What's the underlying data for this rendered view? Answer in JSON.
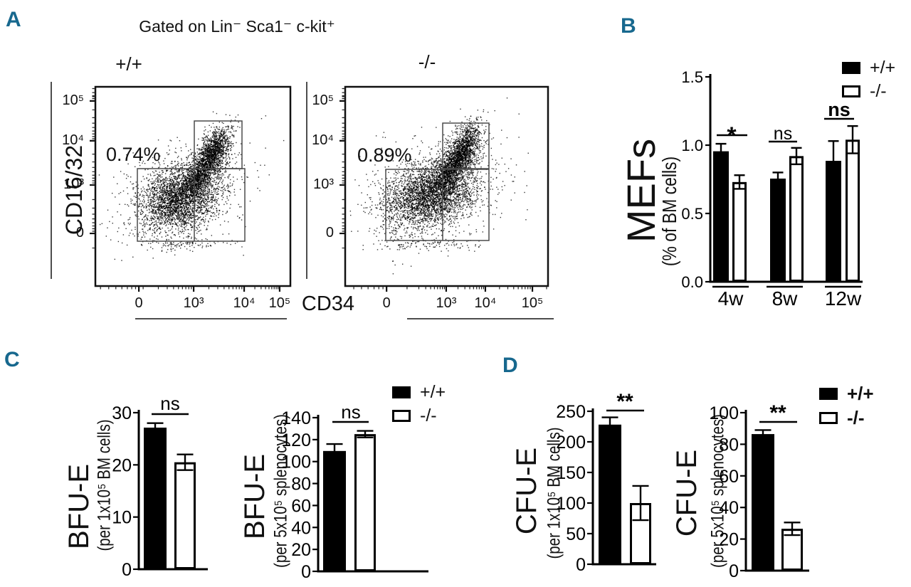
{
  "figure": {
    "background": "#ffffff",
    "panel_label_color": "#17688e",
    "ink": "#000000",
    "bar_fill_wildtype": "#000000",
    "bar_fill_knockout": "#ffffff"
  },
  "panels": {
    "a": {
      "label": "A",
      "title": "Gated on Lin⁻ Sca1⁻ c-kit⁺",
      "x_axis_label": "CD34",
      "y_axis_label": "CD16/32",
      "plots": [
        {
          "genotype": "+/+",
          "percent": "0.74%"
        },
        {
          "genotype": "-/-",
          "percent": "0.89%"
        }
      ]
    },
    "b": {
      "label": "B",
      "y_label": "MEFs",
      "y_label_sub": "(% of BM cells)",
      "legend": [
        {
          "label": "+/+"
        },
        {
          "label": "-/-"
        }
      ]
    },
    "c": {
      "label": "C",
      "legend": [
        {
          "label": "+/+"
        },
        {
          "label": "-/-"
        }
      ],
      "charts": [
        {
          "y_label": "BFU-E",
          "y_label_sub": "(per 1x10⁵ BM cells)"
        },
        {
          "y_label": "BFU-E",
          "y_label_sub": "(per 5x10⁵ splenocytes)"
        }
      ]
    },
    "d": {
      "label": "D",
      "legend": [
        {
          "label": "+/+"
        },
        {
          "label": "-/-"
        }
      ],
      "charts": [
        {
          "y_label": "CFU-E",
          "y_label_sub": "(per 1x10⁵ BM cells)"
        },
        {
          "y_label": "CFU-E",
          "y_label_sub": "(per 5x10⁵ splenocytes)"
        }
      ]
    }
  },
  "chart_data": [
    {
      "id": "flow-wildtype",
      "type": "scatter",
      "subtype": "flow-cytometry-dot-plot",
      "title": "+/+",
      "gated_on": "Gated on Lin⁻ Sca1⁻ c-kit⁺",
      "gate_percent": "0.74%",
      "x_label": "CD34",
      "y_label": "CD16/32",
      "x_ticks": [
        "0",
        "10³",
        "10⁴",
        "10⁵"
      ],
      "y_ticks": [
        "10⁵",
        "10⁴",
        "10³",
        "0"
      ]
    },
    {
      "id": "flow-knockout",
      "type": "scatter",
      "subtype": "flow-cytometry-dot-plot",
      "title": "-/-",
      "gated_on": "Gated on Lin⁻ Sca1⁻ c-kit⁺",
      "gate_percent": "0.89%",
      "x_label": "CD34",
      "y_label": "CD16/32",
      "x_ticks": [
        "0",
        "10³",
        "10⁴",
        "10⁵"
      ],
      "y_ticks": [
        "10⁵",
        "10⁴",
        "10³",
        "0"
      ]
    },
    {
      "id": "mefs",
      "type": "bar",
      "title": "MEFs (% of BM cells)",
      "categories": [
        "4w",
        "8w",
        "12w"
      ],
      "series": [
        {
          "name": "+/+",
          "fill": "#000000",
          "values": [
            0.95,
            0.75,
            0.88
          ],
          "errors": [
            0.06,
            0.05,
            0.15
          ]
        },
        {
          "name": "-/-",
          "fill": "#ffffff",
          "values": [
            0.73,
            0.92,
            1.04
          ],
          "errors": [
            0.05,
            0.06,
            0.1
          ]
        }
      ],
      "ylim": [
        0,
        1.5
      ],
      "yticks": [
        "0.0",
        "0.5",
        "1.0",
        "1.5"
      ],
      "significance": [
        {
          "category": "4w",
          "label": "*",
          "bold": true
        },
        {
          "category": "8w",
          "label": "ns",
          "bold": false
        },
        {
          "category": "12w",
          "label": "ns",
          "bold": true
        }
      ]
    },
    {
      "id": "bfue-bm",
      "type": "bar",
      "title": "BFU-E (per 1x10⁵ BM cells)",
      "categories": [
        ""
      ],
      "series": [
        {
          "name": "+/+",
          "fill": "#000000",
          "values": [
            27
          ],
          "errors": [
            1
          ]
        },
        {
          "name": "-/-",
          "fill": "#ffffff",
          "values": [
            20.5
          ],
          "errors": [
            1.5
          ]
        }
      ],
      "ylim": [
        0,
        30
      ],
      "yticks": [
        "0",
        "10",
        "20",
        "30"
      ],
      "significance": [
        {
          "label": "ns",
          "bold": false
        }
      ]
    },
    {
      "id": "bfue-spleen",
      "type": "bar",
      "title": "BFU-E (per 5x10⁵ splenocytes)",
      "categories": [
        ""
      ],
      "series": [
        {
          "name": "+/+",
          "fill": "#000000",
          "values": [
            109
          ],
          "errors": [
            7
          ]
        },
        {
          "name": "-/-",
          "fill": "#ffffff",
          "values": [
            125
          ],
          "errors": [
            3
          ]
        }
      ],
      "ylim": [
        0,
        140
      ],
      "yticks": [
        "0",
        "20",
        "40",
        "60",
        "80",
        "100",
        "120",
        "140"
      ],
      "significance": [
        {
          "label": "ns",
          "bold": false
        }
      ]
    },
    {
      "id": "cfue-bm",
      "type": "bar",
      "title": "CFU-E (per 1x10⁵ BM cells)",
      "categories": [
        ""
      ],
      "series": [
        {
          "name": "+/+",
          "fill": "#000000",
          "values": [
            227
          ],
          "errors": [
            13
          ]
        },
        {
          "name": "-/-",
          "fill": "#ffffff",
          "values": [
            100
          ],
          "errors": [
            28
          ]
        }
      ],
      "ylim": [
        0,
        250
      ],
      "yticks": [
        "0",
        "50",
        "100",
        "150",
        "200",
        "250"
      ],
      "significance": [
        {
          "label": "**",
          "bold": true
        }
      ]
    },
    {
      "id": "cfue-spleen",
      "type": "bar",
      "title": "CFU-E (per 5x10⁵ splenocytes)",
      "categories": [
        ""
      ],
      "series": [
        {
          "name": "+/+",
          "fill": "#000000",
          "values": [
            86
          ],
          "errors": [
            3
          ]
        },
        {
          "name": "-/-",
          "fill": "#ffffff",
          "values": [
            26.5
          ],
          "errors": [
            4
          ]
        }
      ],
      "ylim": [
        0,
        100
      ],
      "yticks": [
        "0",
        "20",
        "40",
        "60",
        "80",
        "100"
      ],
      "significance": [
        {
          "label": "**",
          "bold": true
        }
      ]
    }
  ]
}
